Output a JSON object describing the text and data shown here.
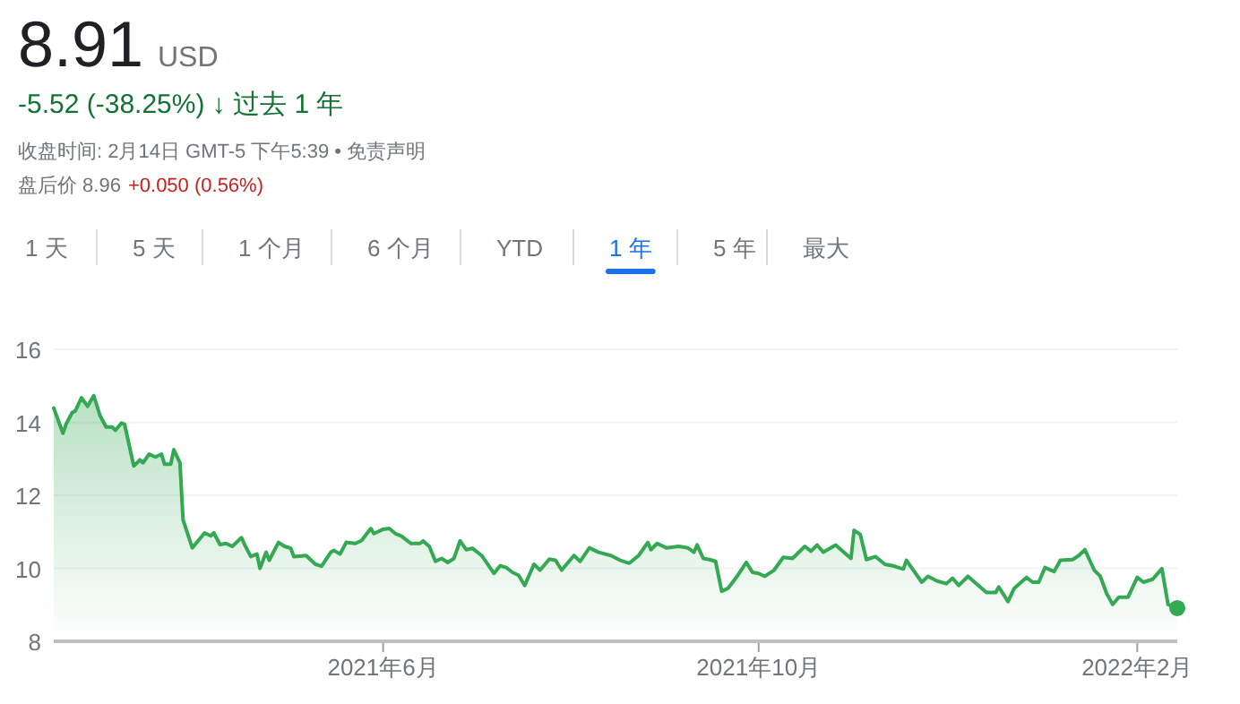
{
  "chart_data": {
    "type": "area",
    "title": "8.91",
    "color": "#34a853",
    "annotations": [
      "USD",
      "-5.52 (-38.25%) ↓ 过去 1 年",
      "收盘时间: 2月14日 GMT-5 下午5:39 • 免责声明",
      "盘后价 8.96",
      "+0.050 (0.56%)",
      "1 天",
      "5 天",
      "1 个月",
      "6 个月",
      "YTD",
      "1 年",
      "5 年",
      "最大"
    ],
    "x": [
      "2021-02-14",
      "2021-02-17",
      "2021-02-18",
      "2021-02-20",
      "2021-02-21",
      "2021-02-23",
      "2021-02-25",
      "2021-02-27",
      "2021-03-01",
      "2021-03-03",
      "2021-03-05",
      "2021-03-06",
      "2021-03-08",
      "2021-03-09",
      "2021-03-12",
      "2021-03-14",
      "2021-03-15",
      "2021-03-17",
      "2021-03-19",
      "2021-03-21",
      "2021-03-22",
      "2021-03-24",
      "2021-03-25",
      "2021-03-27",
      "2021-03-28",
      "2021-03-31",
      "2021-04-04",
      "2021-04-06",
      "2021-04-07",
      "2021-04-09",
      "2021-04-11",
      "2021-04-13",
      "2021-04-16",
      "2021-04-17",
      "2021-04-19",
      "2021-04-21",
      "2021-04-22",
      "2021-04-24",
      "2021-04-25",
      "2021-04-28",
      "2021-04-30",
      "2021-05-02",
      "2021-05-03",
      "2021-05-07",
      "2021-05-10",
      "2021-05-12",
      "2021-05-15",
      "2021-05-16",
      "2021-05-18",
      "2021-05-20",
      "2021-05-23",
      "2021-05-25",
      "2021-05-28",
      "2021-05-29",
      "2021-06-01",
      "2021-06-03",
      "2021-06-05",
      "2021-06-07",
      "2021-06-10",
      "2021-06-13",
      "2021-06-14",
      "2021-06-16",
      "2021-06-18",
      "2021-06-20",
      "2021-06-22",
      "2021-06-24",
      "2021-06-26",
      "2021-06-28",
      "2021-06-30",
      "2021-07-03",
      "2021-07-07",
      "2021-07-09",
      "2021-07-11",
      "2021-07-13",
      "2021-07-15",
      "2021-07-17",
      "2021-07-20",
      "2021-07-22",
      "2021-07-25",
      "2021-07-27",
      "2021-07-29",
      "2021-08-02",
      "2021-08-04",
      "2021-08-07",
      "2021-08-10",
      "2021-08-14",
      "2021-08-17",
      "2021-08-20",
      "2021-08-23",
      "2021-08-26",
      "2021-08-27",
      "2021-08-29",
      "2021-09-01",
      "2021-09-05",
      "2021-09-08",
      "2021-09-10",
      "2021-09-11",
      "2021-09-13",
      "2021-09-15",
      "2021-09-17",
      "2021-09-19",
      "2021-09-21",
      "2021-09-24",
      "2021-09-27",
      "2021-09-29",
      "2021-10-01",
      "2021-10-03",
      "2021-10-06",
      "2021-10-09",
      "2021-10-12",
      "2021-10-16",
      "2021-10-18",
      "2021-10-20",
      "2021-10-22",
      "2021-10-26",
      "2021-10-31",
      "2021-11-01",
      "2021-11-03",
      "2021-11-05",
      "2021-11-08",
      "2021-11-11",
      "2021-11-14",
      "2021-11-17",
      "2021-11-18",
      "2021-11-23",
      "2021-11-25",
      "2021-11-28",
      "2021-12-01",
      "2021-12-03",
      "2021-12-05",
      "2021-12-08",
      "2021-12-14",
      "2021-12-17",
      "2021-12-18",
      "2021-12-21",
      "2021-12-23",
      "2021-12-27",
      "2021-12-29",
      "2021-12-31",
      "2022-01-02",
      "2022-01-05",
      "2022-01-07",
      "2022-01-11",
      "2022-01-13",
      "2022-01-15",
      "2022-01-18",
      "2022-01-20",
      "2022-01-22",
      "2022-01-24",
      "2022-01-26",
      "2022-01-29",
      "2022-02-01",
      "2022-02-03",
      "2022-02-06",
      "2022-02-09",
      "2022-02-11",
      "2022-02-14"
    ],
    "values": [
      14.39,
      13.7,
      13.95,
      14.27,
      14.31,
      14.67,
      14.44,
      14.73,
      14.19,
      13.87,
      13.87,
      13.78,
      13.98,
      13.95,
      12.8,
      12.97,
      12.89,
      13.13,
      13.05,
      13.13,
      12.85,
      12.85,
      13.25,
      12.89,
      11.33,
      10.56,
      10.97,
      10.89,
      10.97,
      10.65,
      10.68,
      10.6,
      10.84,
      10.65,
      10.32,
      10.39,
      10.0,
      10.44,
      10.22,
      10.71,
      10.6,
      10.55,
      10.32,
      10.35,
      10.11,
      10.06,
      10.44,
      10.49,
      10.39,
      10.71,
      10.68,
      10.76,
      11.09,
      10.95,
      11.07,
      11.09,
      10.95,
      10.88,
      10.68,
      10.68,
      10.75,
      10.6,
      10.19,
      10.27,
      10.16,
      10.27,
      10.75,
      10.51,
      10.55,
      10.35,
      9.86,
      10.07,
      10.02,
      9.89,
      9.81,
      9.53,
      10.11,
      9.95,
      10.25,
      10.22,
      9.95,
      10.35,
      10.19,
      10.56,
      10.44,
      10.35,
      10.22,
      10.14,
      10.35,
      10.71,
      10.51,
      10.68,
      10.56,
      10.6,
      10.56,
      10.44,
      10.64,
      10.27,
      10.24,
      10.19,
      9.37,
      9.45,
      9.78,
      10.16,
      9.89,
      9.86,
      9.78,
      9.95,
      10.3,
      10.27,
      10.6,
      10.47,
      10.64,
      10.44,
      10.64,
      10.27,
      11.04,
      10.93,
      10.24,
      10.32,
      10.11,
      10.06,
      9.98,
      10.22,
      9.62,
      9.78,
      9.65,
      9.58,
      9.73,
      9.53,
      9.78,
      9.34,
      9.34,
      9.49,
      9.09,
      9.45,
      9.75,
      9.62,
      9.62,
      10.02,
      9.91,
      10.22,
      10.24,
      10.35,
      10.51,
      9.95,
      9.78,
      9.32,
      9.01,
      9.21,
      9.21,
      9.75,
      9.62,
      9.7,
      9.99,
      9.01,
      8.91
    ],
    "xlim": [
      "2021-02-14",
      "2022-02-14"
    ],
    "xticks": [
      {
        "value": "2021-06-01",
        "label": "2021年6月"
      },
      {
        "value": "2021-10-01",
        "label": "2021年10月"
      },
      {
        "value": "2022-02-01",
        "label": "2022年2月"
      }
    ],
    "ylim": [
      8,
      16
    ],
    "yticks": [
      8,
      10,
      12,
      14,
      16
    ],
    "grid": "y"
  }
}
